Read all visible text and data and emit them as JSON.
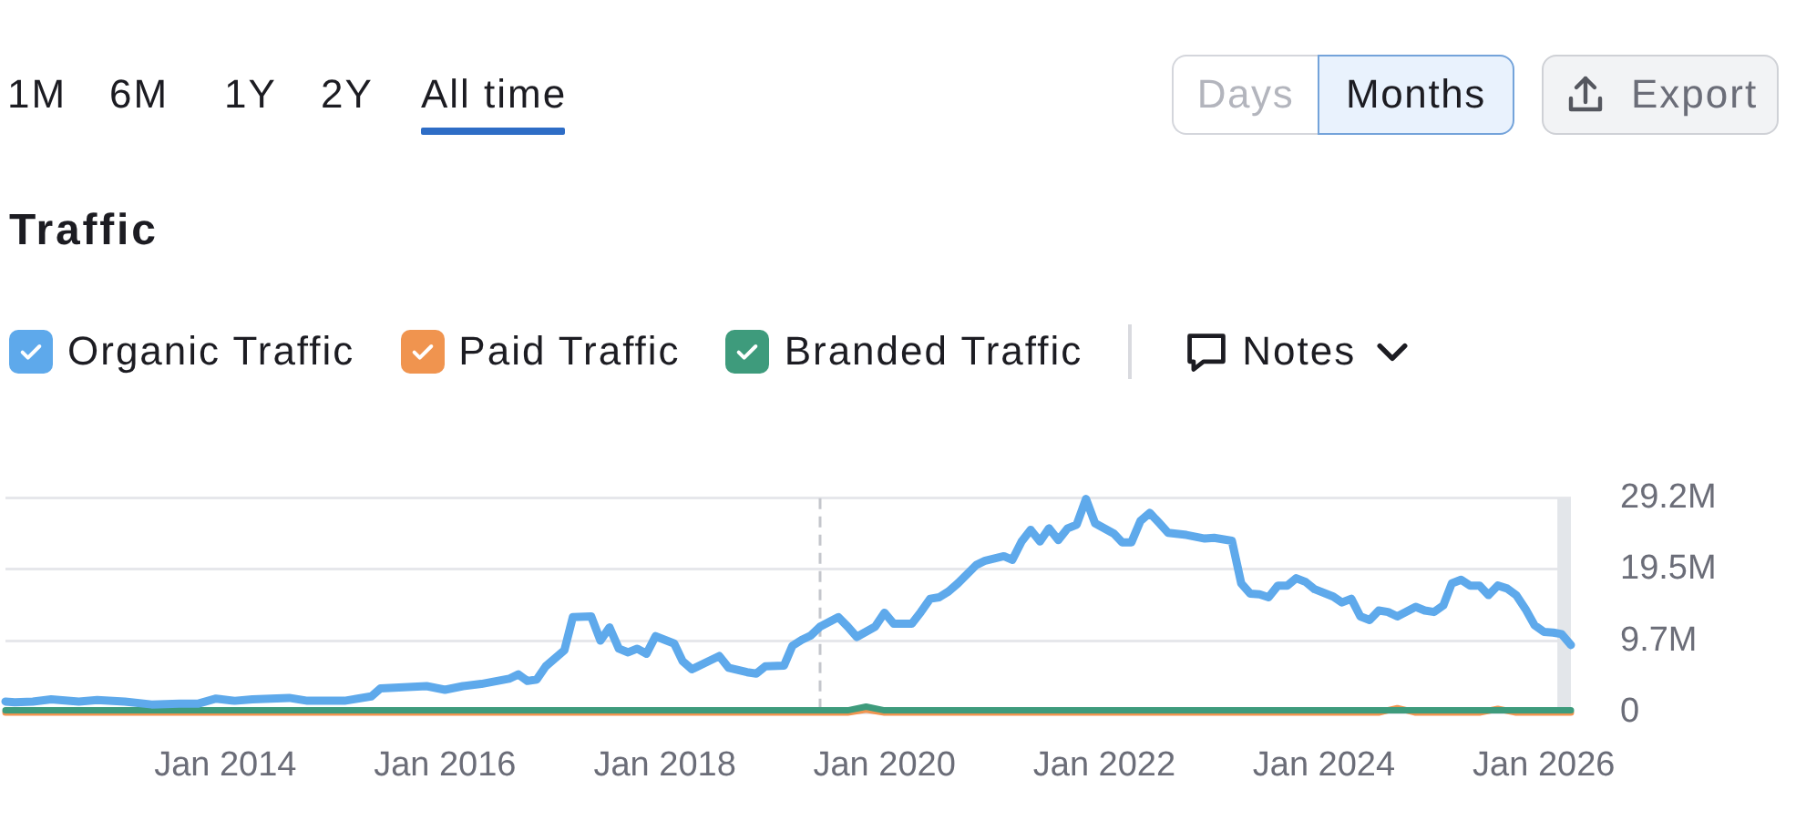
{
  "chart_data": {
    "type": "line",
    "title": "Traffic",
    "annotations": [
      "1M",
      "6M",
      "1Y",
      "2Y",
      "All time",
      "Days",
      "Months",
      "Export",
      "Notes"
    ],
    "series": [
      {
        "name": "Organic Traffic",
        "color": "#5ea9eb",
        "x": [
          "2012-01",
          "2012-02",
          "2012-04",
          "2012-06",
          "2012-09",
          "2012-11",
          "2013-02",
          "2013-05",
          "2013-08",
          "2013-10",
          "2013-12",
          "2014-02",
          "2014-04",
          "2014-08",
          "2014-10",
          "2015-02",
          "2015-05",
          "2015-06",
          "2015-08",
          "2015-11",
          "2016-01",
          "2016-03",
          "2016-05",
          "2016-08",
          "2016-09",
          "2016-10",
          "2016-11",
          "2016-12",
          "2017-02",
          "2017-03",
          "2017-05",
          "2017-06",
          "2017-07",
          "2017-08",
          "2017-09",
          "2017-10",
          "2017-11",
          "2017-12",
          "2018-02",
          "2018-03",
          "2018-04",
          "2018-06",
          "2018-07",
          "2018-08",
          "2018-10",
          "2018-11",
          "2018-12",
          "2019-02",
          "2019-03",
          "2019-04",
          "2019-05",
          "2019-06",
          "2019-08",
          "2019-09",
          "2019-10",
          "2019-12",
          "2020-01",
          "2020-02",
          "2020-04",
          "2020-05",
          "2020-06",
          "2020-07",
          "2020-08",
          "2020-09",
          "2020-11",
          "2020-12",
          "2021-02",
          "2021-03",
          "2021-04",
          "2021-05",
          "2021-06",
          "2021-07",
          "2021-08",
          "2021-09",
          "2021-10",
          "2021-11",
          "2021-12",
          "2022-02",
          "2022-03",
          "2022-04",
          "2022-05",
          "2022-06",
          "2022-07",
          "2022-08",
          "2022-10",
          "2022-12",
          "2023-01",
          "2023-03",
          "2023-04",
          "2023-05",
          "2023-06",
          "2023-07",
          "2023-08",
          "2023-09",
          "2023-10",
          "2023-11",
          "2023-12",
          "2024-02",
          "2024-03",
          "2024-04",
          "2024-05",
          "2024-06",
          "2024-07",
          "2024-08",
          "2024-09",
          "2024-11",
          "2024-12",
          "2025-01",
          "2025-02",
          "2025-03",
          "2025-04",
          "2025-05",
          "2025-06",
          "2025-07",
          "2025-08",
          "2025-09",
          "2025-10",
          "2025-11",
          "2025-12",
          "2026-01",
          "2026-02",
          "2026-03",
          "2026-04"
        ],
        "values": [
          1.5,
          1.4,
          1.5,
          1.8,
          1.5,
          1.7,
          1.5,
          1.1,
          1.2,
          1.2,
          1.9,
          1.6,
          1.8,
          2.0,
          1.6,
          1.6,
          2.2,
          3.3,
          3.4,
          3.6,
          3.1,
          3.6,
          3.9,
          4.6,
          5.2,
          4.3,
          4.5,
          6.3,
          8.5,
          13.0,
          13.1,
          9.8,
          11.6,
          8.7,
          8.2,
          8.7,
          8.0,
          10.4,
          9.4,
          7.0,
          5.9,
          7.1,
          7.7,
          6.1,
          5.5,
          5.3,
          6.3,
          6.4,
          9.1,
          9.9,
          10.5,
          11.7,
          13.0,
          11.7,
          10.3,
          11.7,
          13.6,
          12.1,
          12.1,
          13.7,
          15.5,
          15.7,
          16.5,
          17.6,
          20.1,
          20.7,
          21.3,
          20.8,
          23.3,
          24.9,
          23.3,
          25.1,
          23.5,
          25.1,
          25.6,
          29.1,
          25.8,
          24.4,
          23.2,
          23.2,
          26.1,
          27.2,
          25.9,
          24.5,
          24.2,
          23.7,
          23.8,
          23.4,
          17.6,
          16.2,
          16.1,
          15.7,
          17.3,
          17.3,
          18.3,
          17.8,
          16.8,
          15.8,
          15.0,
          15.5,
          13.1,
          12.6,
          13.9,
          13.7,
          13.1,
          14.4,
          13.9,
          13.7,
          14.6,
          17.6,
          18.1,
          17.3,
          17.3,
          16.0,
          17.3,
          16.9,
          16.0,
          14.1,
          11.9,
          11.0,
          10.9,
          10.7,
          9.2
        ]
      },
      {
        "name": "Paid Traffic",
        "color": "#f0944f",
        "x": [
          "2012-01",
          "2019-09",
          "2019-11",
          "2020-01",
          "2024-07",
          "2024-09",
          "2024-11",
          "2025-06",
          "2025-08",
          "2025-10",
          "2026-04"
        ],
        "values": [
          0.0,
          0.0,
          0.4,
          0.0,
          0.0,
          0.6,
          0.0,
          0.0,
          0.5,
          0.0,
          0.0
        ]
      },
      {
        "name": "Branded Traffic",
        "color": "#3e9b7c",
        "x": [
          "2012-01",
          "2016-01",
          "2018-01",
          "2019-09",
          "2019-11",
          "2020-01",
          "2022-01",
          "2026-04"
        ],
        "values": [
          0.3,
          0.3,
          0.3,
          0.3,
          0.8,
          0.3,
          0.3,
          0.3
        ]
      }
    ],
    "xlim": [
      "2012-01",
      "2026-04"
    ],
    "xticks": [
      {
        "value": "2014-01",
        "label": "Jan 2014"
      },
      {
        "value": "2016-01",
        "label": "Jan 2016"
      },
      {
        "value": "2018-01",
        "label": "Jan 2018"
      },
      {
        "value": "2020-01",
        "label": "Jan 2020"
      },
      {
        "value": "2022-01",
        "label": "Jan 2022"
      },
      {
        "value": "2024-01",
        "label": "Jan 2024"
      },
      {
        "value": "2026-01",
        "label": "Jan 2026"
      }
    ],
    "ylim": [
      0,
      29.2
    ],
    "yticks": [
      0,
      {
        "value": 9.7,
        "label": "9.7M"
      },
      {
        "value": 19.5,
        "label": "19.5M"
      },
      {
        "value": 29.2,
        "label": "29.2M"
      }
    ],
    "ref_lines": [
      {
        "axis": "x",
        "value": "2019-06",
        "color": "#c4c6cc",
        "line_style": "dashed"
      }
    ],
    "bands": [
      {
        "axis": "x",
        "from": "2026-02-15",
        "to": "2026-04",
        "color": "#e3e6ea"
      }
    ],
    "grid": "y",
    "legend": "top left",
    "marker": "none",
    "line_style": "solid"
  }
}
